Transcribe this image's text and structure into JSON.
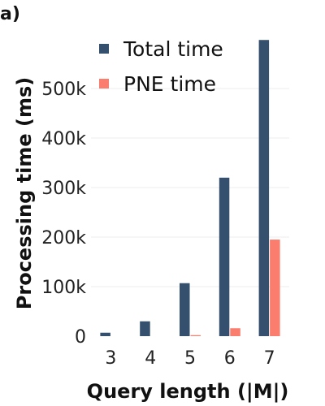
{
  "panel_label": "a)",
  "chart_data": {
    "type": "bar",
    "title": "",
    "xlabel": "Query length (|M|)",
    "ylabel": "Processing time (ms)",
    "categories": [
      "3",
      "4",
      "5",
      "6",
      "7"
    ],
    "series": [
      {
        "name": "Total time",
        "color": "#34506e",
        "values": [
          7000,
          30000,
          107000,
          320000,
          598000
        ]
      },
      {
        "name": "PNE time",
        "color": "#fa7d6e",
        "values": [
          0,
          0,
          2000,
          16000,
          195000
        ]
      }
    ],
    "ylim": [
      0,
      600000
    ],
    "yticks": [
      0,
      100000,
      200000,
      300000,
      400000,
      500000
    ],
    "ytick_labels": [
      "0",
      "100k",
      "200k",
      "300k",
      "400k",
      "500k"
    ],
    "grid": true,
    "legend_position": "top-left"
  }
}
